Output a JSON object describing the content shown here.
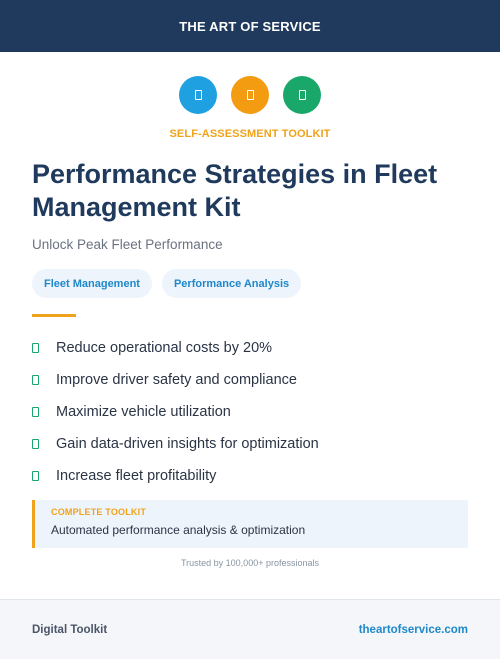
{
  "header": {
    "title": "THE ART OF SERVICE"
  },
  "icons": [
    {
      "name": "document-icon",
      "color": "#1fa0e0"
    },
    {
      "name": "document-icon",
      "color": "#f39c12"
    },
    {
      "name": "document-icon",
      "color": "#1aa86a"
    }
  ],
  "kicker": "SELF-ASSESSMENT TOOLKIT",
  "title": "Performance Strategies in Fleet Management Kit",
  "subtitle": "Unlock Peak Fleet Performance",
  "tags": [
    "Fleet Management",
    "Performance Analysis"
  ],
  "benefits": [
    "Reduce operational costs by 20%",
    "Improve driver safety and compliance",
    "Maximize vehicle utilization",
    "Gain data-driven insights for optimization",
    "Increase fleet profitability"
  ],
  "callout": {
    "label": "COMPLETE TOOLKIT",
    "text": "Automated performance analysis & optimization"
  },
  "trusted": "Trusted by 100,000+ professionals",
  "footer": {
    "left": "Digital Toolkit",
    "right": "theartofservice.com"
  },
  "colors": {
    "navy": "#1f3a5c",
    "orange": "#f0a21b",
    "blue": "#1e88c9",
    "green": "#1aa86a"
  }
}
